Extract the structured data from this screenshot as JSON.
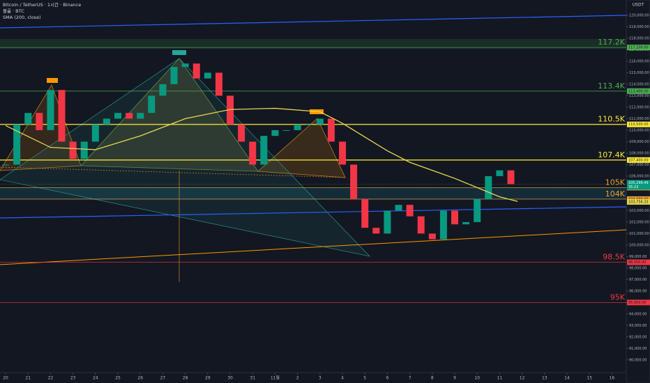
{
  "chart_data": {
    "type": "candlestick",
    "title": "Bitcoin / TetherUS · 1시간 · Binance",
    "volume_label": "볼륨 · BTC",
    "currency": "USDT",
    "up_color": "#089981",
    "down_color": "#f23645",
    "x": [
      0,
      0.5,
      1,
      1.5,
      2,
      2.5,
      3,
      3.5,
      4,
      4.5,
      5,
      5.5,
      6,
      6.5,
      7,
      7.5,
      8,
      8.5,
      9,
      9.5,
      10,
      10.5,
      11,
      11.5,
      12,
      12.5,
      13,
      13.5,
      14,
      14.5,
      15,
      15.5,
      16,
      16.5,
      17,
      17.5,
      18,
      18.5,
      19,
      19.5,
      20,
      20.5,
      21,
      21.5,
      22,
      22.5
    ],
    "values": [
      107000,
      110500,
      111500,
      110000,
      113500,
      109000,
      107500,
      109000,
      110500,
      111000,
      111500,
      111000,
      111500,
      113000,
      114000,
      115500,
      115800,
      114500,
      115000,
      113000,
      110500,
      109000,
      107000,
      109500,
      110000,
      110000,
      110500,
      110500,
      111000,
      109000,
      107000,
      104000,
      101500,
      101000,
      103000,
      103500,
      102500,
      101000,
      100500,
      103000,
      101800,
      102000,
      104000,
      106000,
      106500,
      105300
    ],
    "last_price": {
      "value": 105299.49,
      "label": "105,299.49"
    },
    "countdown": "35:23",
    "sma": {
      "name": "SMA (200, close)",
      "color": "#e6d84e",
      "x": [
        0,
        2,
        4,
        6,
        8,
        10,
        12,
        14,
        15,
        16,
        17,
        18,
        19,
        20,
        21,
        22,
        22.8
      ],
      "values": [
        110400,
        108500,
        108300,
        109500,
        111000,
        111800,
        111900,
        111600,
        110600,
        109400,
        108200,
        107200,
        106500,
        105800,
        105000,
        104200,
        103800
      ],
      "current": {
        "value": 103756.33,
        "label": "103,756.33"
      }
    },
    "levels": [
      {
        "label": "117.2K",
        "value": 117200,
        "price_label": "117,200.00",
        "color": "#4caf50"
      },
      {
        "label": "113.4K",
        "value": 113400,
        "price_label": "113,400.00",
        "color": "#4caf50"
      },
      {
        "label": "110.5K",
        "value": 110500,
        "price_label": "110,500.00",
        "color": "#ffeb3b"
      },
      {
        "label": "107.4K",
        "value": 107400,
        "price_label": "107,400.00",
        "color": "#ffeb3b"
      },
      {
        "label": "105K",
        "value": 105000,
        "price_label": "105,000.00",
        "color": "#f0a030"
      },
      {
        "label": "104K",
        "value": 104000,
        "price_label": "104,000.00",
        "color": "#f0a030"
      },
      {
        "label": "98.5K",
        "value": 98500,
        "price_label": "98,500.00",
        "color": "#f23645"
      },
      {
        "label": "95K",
        "value": 95000,
        "price_label": "95,000.00",
        "color": "#f23645"
      }
    ],
    "xlim": [
      -0.25,
      27.64
    ],
    "xticks": [
      {
        "value": 0,
        "label": "20"
      },
      {
        "value": 1,
        "label": "21"
      },
      {
        "value": 2,
        "label": "22"
      },
      {
        "value": 3,
        "label": "23"
      },
      {
        "value": 4,
        "label": "24"
      },
      {
        "value": 5,
        "label": "25"
      },
      {
        "value": 6,
        "label": "26"
      },
      {
        "value": 7,
        "label": "27"
      },
      {
        "value": 8,
        "label": "28"
      },
      {
        "value": 9,
        "label": "29"
      },
      {
        "value": 10,
        "label": "30"
      },
      {
        "value": 11,
        "label": "31"
      },
      {
        "value": 12,
        "label": "11월"
      },
      {
        "value": 13,
        "label": "2"
      },
      {
        "value": 14,
        "label": "3"
      },
      {
        "value": 15,
        "label": "4"
      },
      {
        "value": 16,
        "label": "5"
      },
      {
        "value": 17,
        "label": "6"
      },
      {
        "value": 18,
        "label": "7"
      },
      {
        "value": 19,
        "label": "8"
      },
      {
        "value": 20,
        "label": "9"
      },
      {
        "value": 21,
        "label": "10"
      },
      {
        "value": 22,
        "label": "11"
      },
      {
        "value": 23,
        "label": "12"
      },
      {
        "value": 24,
        "label": "13"
      },
      {
        "value": 25,
        "label": "14"
      },
      {
        "value": 26,
        "label": "15"
      },
      {
        "value": 27,
        "label": "16"
      }
    ],
    "ylim": [
      88900,
      121330
    ],
    "yticks": [
      {
        "value": 90000,
        "label": "90,000.00"
      },
      {
        "value": 91000,
        "label": "91,000.00"
      },
      {
        "value": 92000,
        "label": "92,000.00"
      },
      {
        "value": 93000,
        "label": "93,000.00"
      },
      {
        "value": 94000,
        "label": "94,000.00"
      },
      {
        "value": 95000,
        "label": "95,000.00"
      },
      {
        "value": 96000,
        "label": "96,000.00"
      },
      {
        "value": 97000,
        "label": "97,000.00"
      },
      {
        "value": 98000,
        "label": "98,000.00"
      },
      {
        "value": 99000,
        "label": "99,000.00"
      },
      {
        "value": 100000,
        "label": "100,000.00"
      },
      {
        "value": 101000,
        "label": "101,000.00"
      },
      {
        "value": 102000,
        "label": "102,000.00"
      },
      {
        "value": 103000,
        "label": "103,000.00"
      },
      {
        "value": 104000,
        "label": "104,000.00"
      },
      {
        "value": 105000,
        "label": "105,000.00"
      },
      {
        "value": 106000,
        "label": "106,000.00"
      },
      {
        "value": 107000,
        "label": "107,000.00"
      },
      {
        "value": 108000,
        "label": "108,000.00"
      },
      {
        "value": 109000,
        "label": "109,000.00"
      },
      {
        "value": 110000,
        "label": "110,000.00"
      },
      {
        "value": 111000,
        "label": "111,000.00"
      },
      {
        "value": 112000,
        "label": "112,000.00"
      },
      {
        "value": 113000,
        "label": "113,000.00"
      },
      {
        "value": 114000,
        "label": "114,000.00"
      },
      {
        "value": 115000,
        "label": "115,000.00"
      },
      {
        "value": 116000,
        "label": "116,000.00"
      },
      {
        "value": 117000,
        "label": "117,000.00"
      },
      {
        "value": 118000,
        "label": "118,000.00"
      },
      {
        "value": 119000,
        "label": "119,000.00"
      },
      {
        "value": 120000,
        "label": "120,000.00"
      }
    ]
  }
}
